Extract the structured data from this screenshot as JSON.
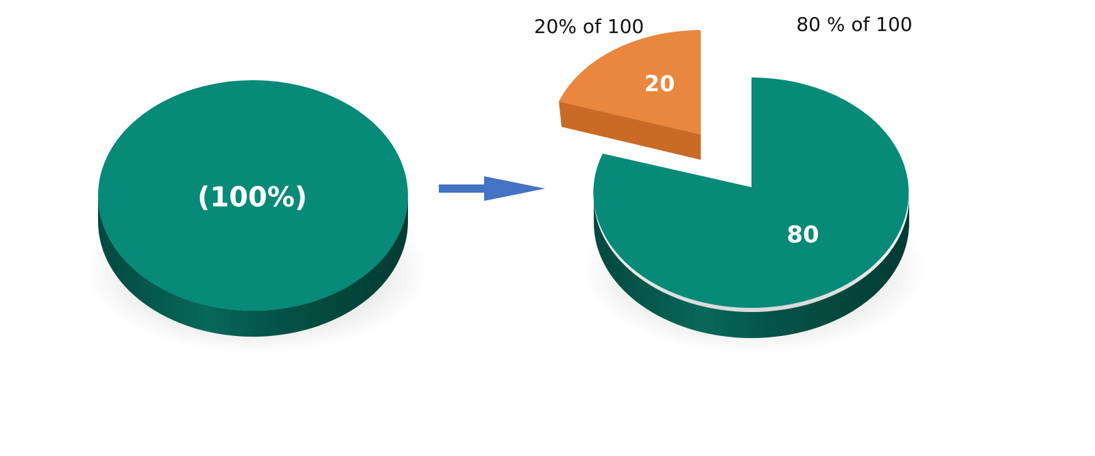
{
  "whole_pie": {
    "label": "(100%)",
    "percent": 100,
    "color": "#078a78"
  },
  "split_pie": {
    "slices": [
      {
        "value": 20,
        "label": "20",
        "caption": "20% of 100",
        "color": "#e8873d",
        "exploded": true
      },
      {
        "value": 80,
        "label": "80",
        "caption": "80 % of 100",
        "color": "#078a78",
        "exploded": false
      }
    ]
  },
  "arrow": {
    "color": "#4472c4",
    "direction": "right"
  }
}
